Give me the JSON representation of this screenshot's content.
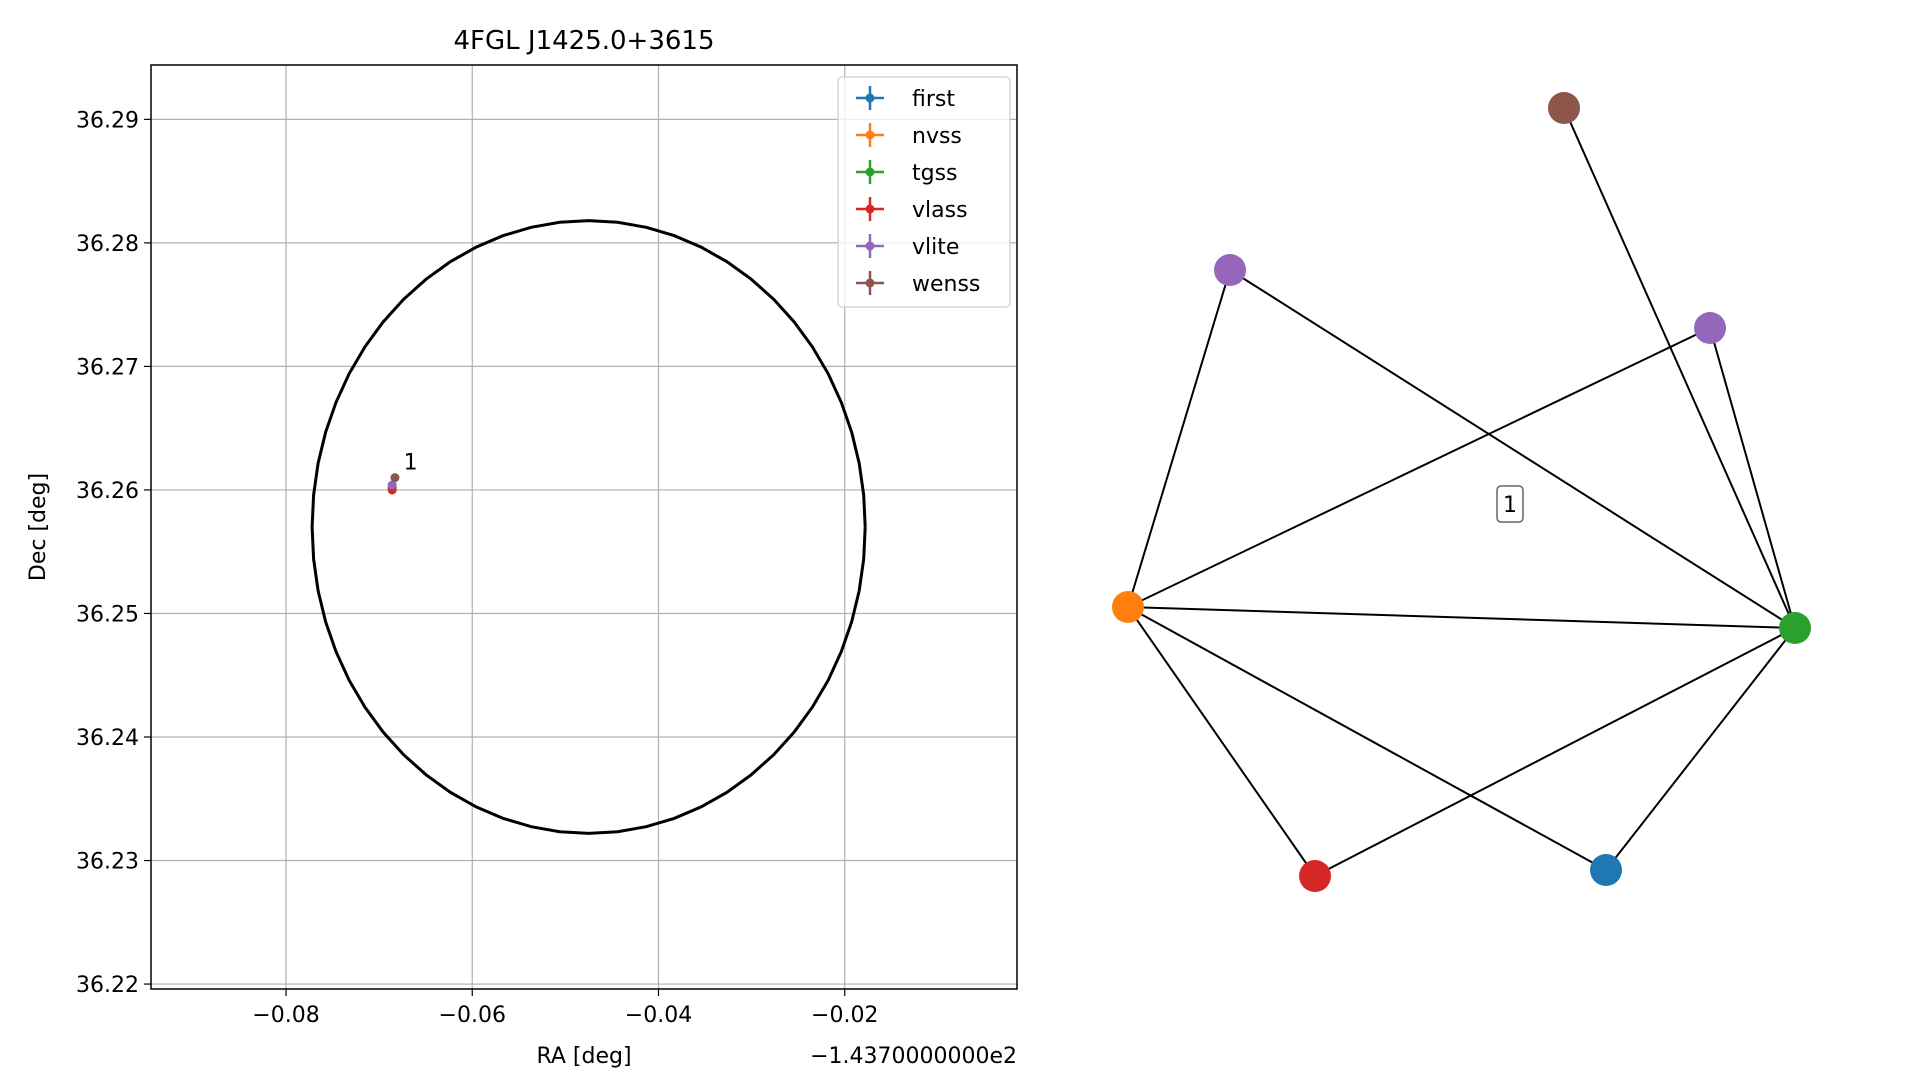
{
  "chart_data": [
    {
      "type": "scatter",
      "title": "4FGL J1425.0+3615",
      "xlabel": "RA [deg]",
      "ylabel": "Dec [deg]",
      "x_offset_label": "−1.4370000000e2",
      "x_ticks": [
        -0.08,
        -0.06,
        -0.04,
        -0.02
      ],
      "x_tick_labels": [
        "−0.08",
        "−0.06",
        "−0.04",
        "−0.02"
      ],
      "xlim": [
        -0.0945,
        -0.0015
      ],
      "y_ticks": [
        36.22,
        36.23,
        36.24,
        36.25,
        36.26,
        36.27,
        36.28,
        36.29
      ],
      "y_tick_labels": [
        "36.22",
        "36.23",
        "36.24",
        "36.25",
        "36.26",
        "36.27",
        "36.28",
        "36.29"
      ],
      "ylim": [
        36.2196,
        36.2944
      ],
      "grid": true,
      "legend_position": "upper right",
      "series": [
        {
          "name": "first",
          "color": "#1f77b4",
          "x": [
            -0.0686
          ],
          "y": [
            36.2602
          ]
        },
        {
          "name": "nvss",
          "color": "#ff7f0e",
          "x": [
            -0.0686
          ],
          "y": [
            36.2601
          ]
        },
        {
          "name": "tgss",
          "color": "#2ca02c",
          "x": [
            -0.0686
          ],
          "y": [
            36.2602
          ]
        },
        {
          "name": "vlass",
          "color": "#d62728",
          "x": [
            -0.0686
          ],
          "y": [
            36.26
          ]
        },
        {
          "name": "vlite",
          "color": "#9467bd",
          "x": [
            -0.0686
          ],
          "y": [
            36.2604
          ]
        },
        {
          "name": "wenss",
          "color": "#8c564b",
          "x": [
            -0.0683
          ],
          "y": [
            36.261
          ]
        }
      ],
      "ellipse": {
        "center_x": -0.0475,
        "center_y": 36.257,
        "radius_x": 0.0297,
        "radius_y": 0.0248,
        "color": "#000000"
      },
      "annotations": [
        {
          "text": "1",
          "x": -0.0678,
          "y": 36.2615
        }
      ]
    },
    {
      "type": "network",
      "cluster_label": "1",
      "nodes": [
        {
          "id": "first",
          "color": "#1f77b4"
        },
        {
          "id": "nvss",
          "color": "#ff7f0e"
        },
        {
          "id": "tgss",
          "color": "#2ca02c"
        },
        {
          "id": "vlass",
          "color": "#d62728"
        },
        {
          "id": "vlite_a",
          "color": "#9467bd"
        },
        {
          "id": "vlite_b",
          "color": "#9467bd"
        },
        {
          "id": "wenss",
          "color": "#8c564b"
        }
      ],
      "edges": [
        [
          "nvss",
          "vlite_a"
        ],
        [
          "nvss",
          "vlite_b"
        ],
        [
          "nvss",
          "tgss"
        ],
        [
          "nvss",
          "vlass"
        ],
        [
          "nvss",
          "first"
        ],
        [
          "vlite_a",
          "tgss"
        ],
        [
          "wenss",
          "tgss"
        ],
        [
          "vlite_b",
          "tgss"
        ],
        [
          "vlass",
          "tgss"
        ],
        [
          "first",
          "tgss"
        ]
      ]
    }
  ]
}
